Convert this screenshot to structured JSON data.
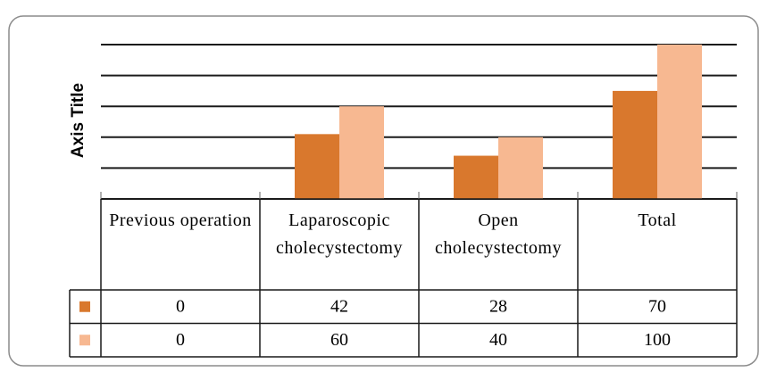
{
  "chart_data": {
    "type": "bar",
    "y_axis_title": "Axis Title",
    "categories": [
      "Previous operation",
      "Laparoscopic cholecystectomy",
      "Open cholecystectomy",
      "Total"
    ],
    "series": [
      {
        "color": "#d9782d",
        "values": [
          0,
          42,
          28,
          70
        ]
      },
      {
        "color": "#f7b891",
        "values": [
          0,
          60,
          40,
          100
        ]
      }
    ],
    "ylim": [
      0,
      100
    ],
    "yticks": [
      0,
      20,
      40,
      60,
      80,
      100
    ],
    "grid": true,
    "data_table": true
  }
}
